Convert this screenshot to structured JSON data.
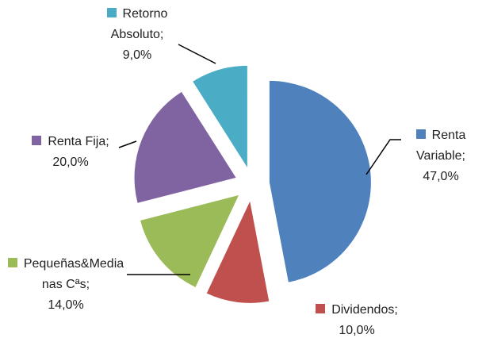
{
  "chart_data": {
    "type": "pie",
    "categories": [
      "Renta Variable",
      "Dividendos",
      "Pequeñas&Medianas Cªs",
      "Renta Fija",
      "Retorno Absoluto"
    ],
    "values": [
      47,
      10,
      14,
      20,
      9
    ],
    "value_labels": [
      "47,0%",
      "10,0%",
      "14,0%",
      "20,0%",
      "9,0%"
    ],
    "label_separator": ";",
    "colors": [
      "#4f81bd",
      "#c0504d",
      "#9bbb59",
      "#8064a2",
      "#4bacc6"
    ]
  }
}
